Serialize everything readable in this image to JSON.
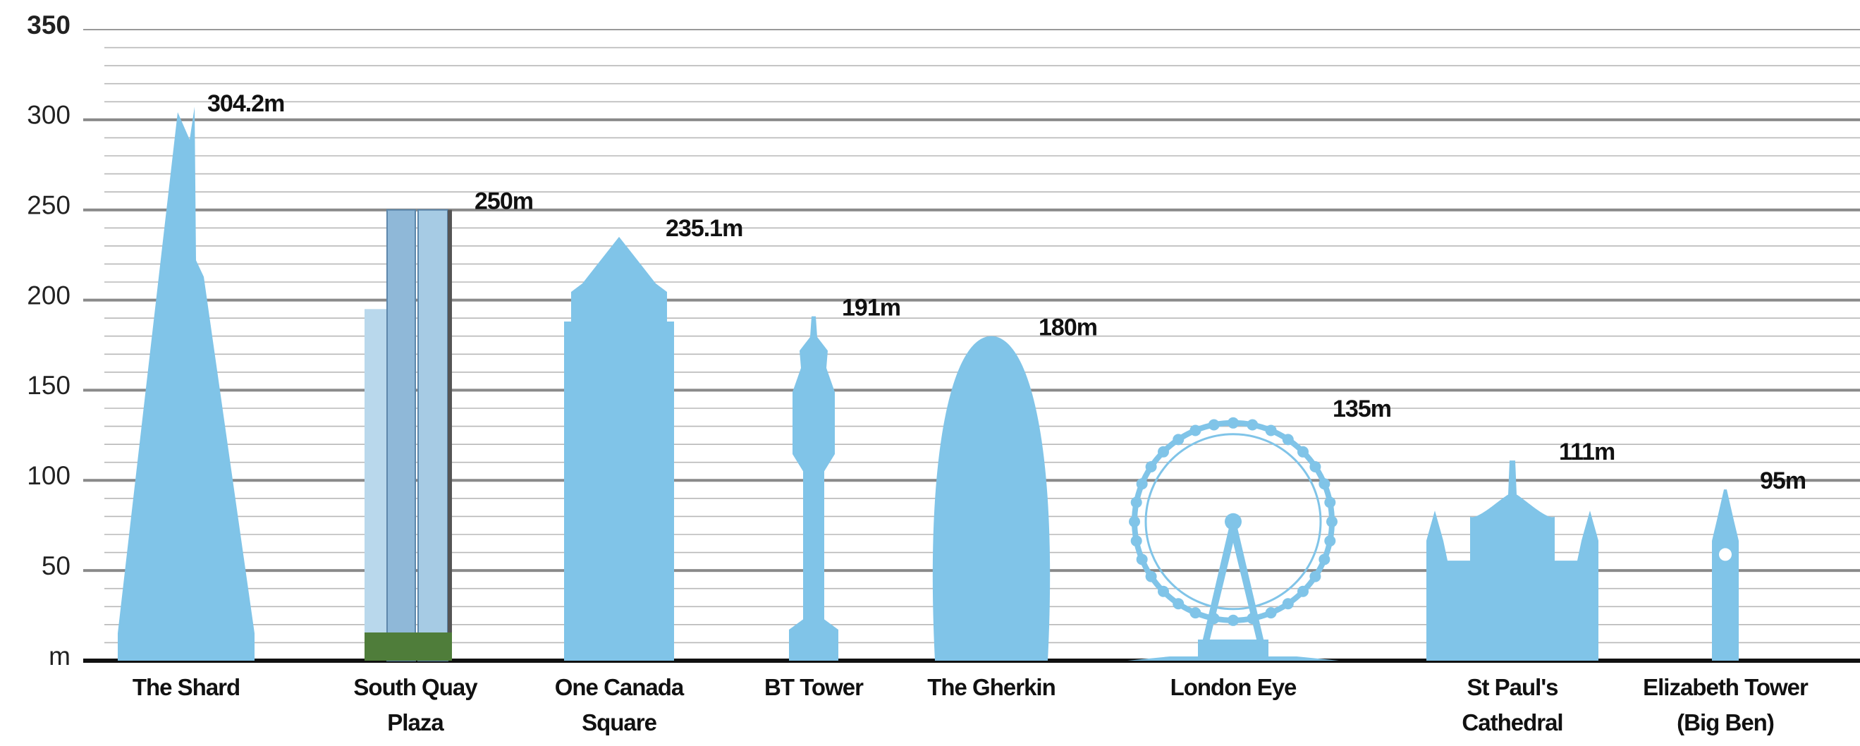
{
  "chart_data": {
    "type": "bar",
    "categories": [
      "The Shard",
      "South Quay\nPlaza",
      "One Canada\nSquare",
      "BT Tower",
      "The Gherkin",
      "London Eye",
      "St Paul's\nCathedral",
      "Elizabeth Tower\n(Big Ben)"
    ],
    "values": [
      304.2,
      250,
      235.1,
      191,
      180,
      135,
      111,
      95
    ],
    "value_labels": [
      "304.2m",
      "250m",
      "235.1m",
      "191m",
      "180m",
      "135m",
      "111m",
      "95m"
    ],
    "color": "#80c4e8",
    "ylim": [
      0,
      350
    ],
    "yticks": [
      {
        "value": 0,
        "label": "m"
      },
      50,
      100,
      150,
      200,
      250,
      300,
      350
    ],
    "minor_yticks": [
      10,
      20,
      30,
      40,
      60,
      70,
      80,
      90,
      110,
      120,
      130,
      140,
      160,
      170,
      180,
      190,
      210,
      220,
      230,
      240,
      260,
      270,
      280,
      290,
      310,
      320,
      330,
      340
    ],
    "grid": true
  }
}
